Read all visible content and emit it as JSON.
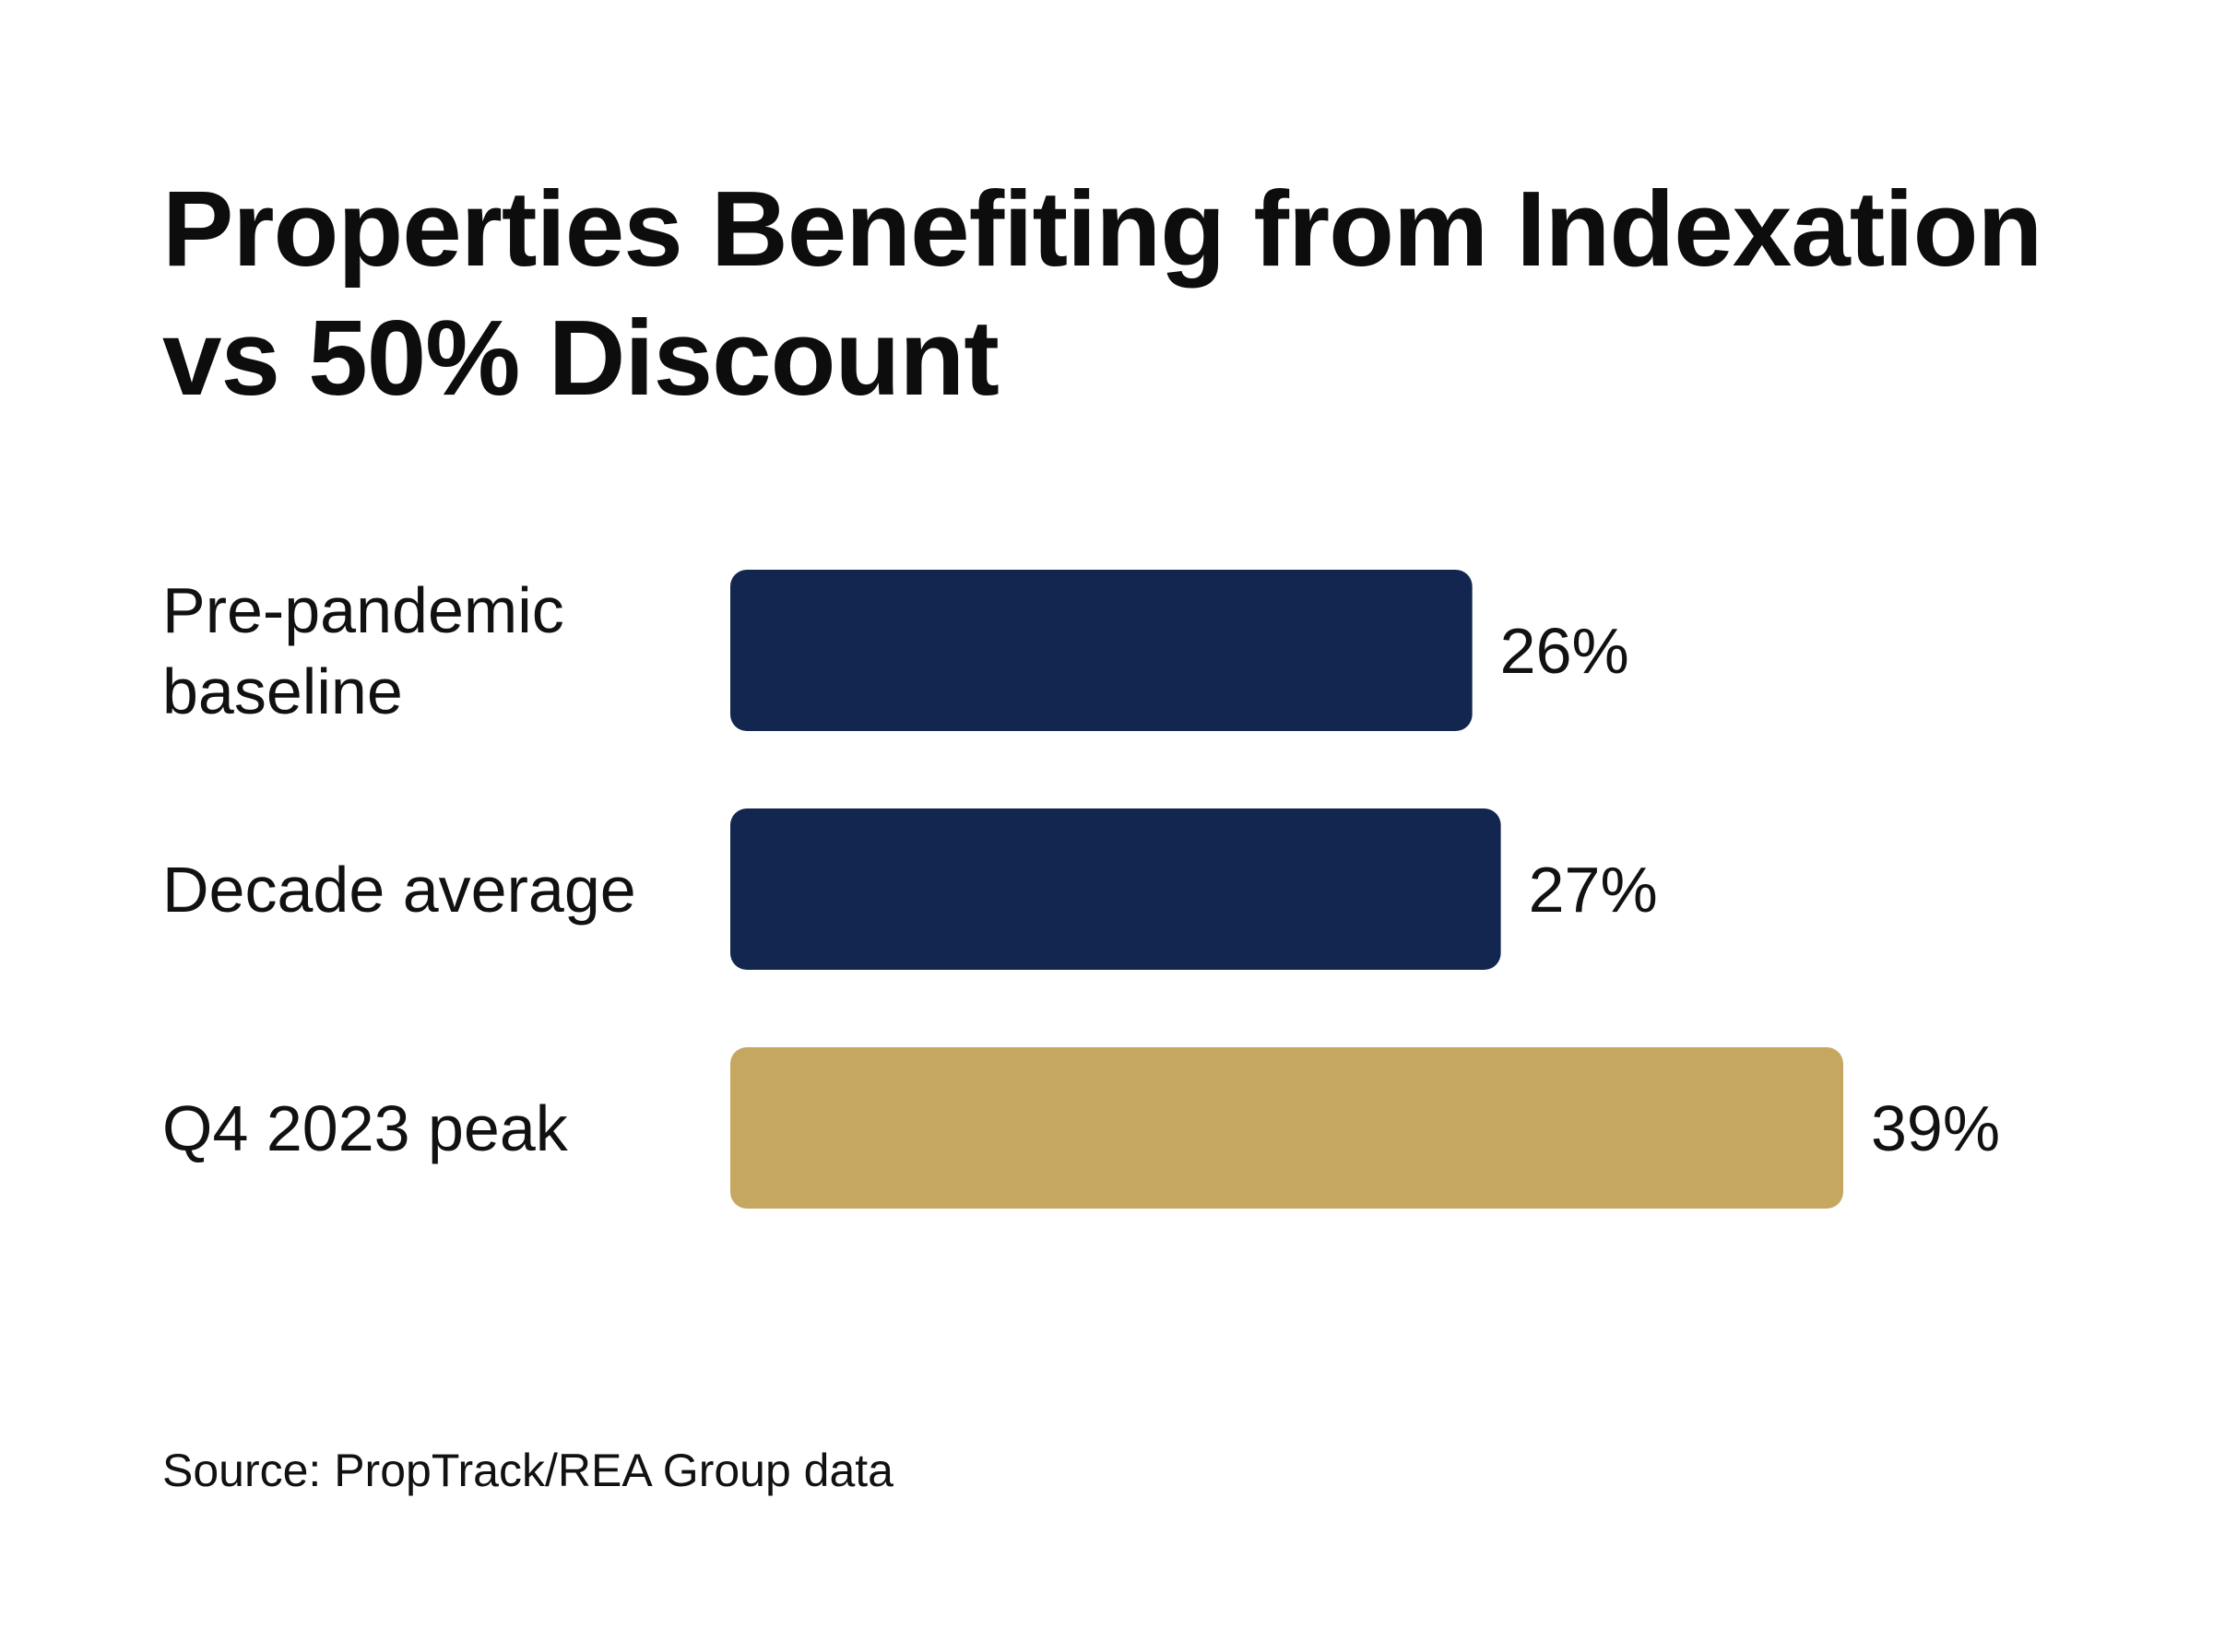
{
  "title": {
    "line1": "Properties Benefiting from Indexation",
    "line2": "vs 50% Discount"
  },
  "source": "Source: PropTrack/REA Group data",
  "colors": {
    "navy": "#12264f",
    "gold": "#c5a75f",
    "text": "#111111"
  },
  "chart_data": {
    "type": "bar",
    "orientation": "horizontal",
    "categories": [
      [
        "Pre-pandemic",
        "baseline"
      ],
      [
        "Decade average"
      ],
      [
        "Q4 2023 peak"
      ]
    ],
    "values": [
      26,
      27,
      39
    ],
    "value_labels": [
      "26%",
      "27%",
      "39%"
    ],
    "bar_colors": [
      "#12264f",
      "#12264f",
      "#c5a75f"
    ],
    "unit": "%",
    "xlim": [
      0,
      39
    ],
    "grid": false,
    "legend": "none"
  }
}
